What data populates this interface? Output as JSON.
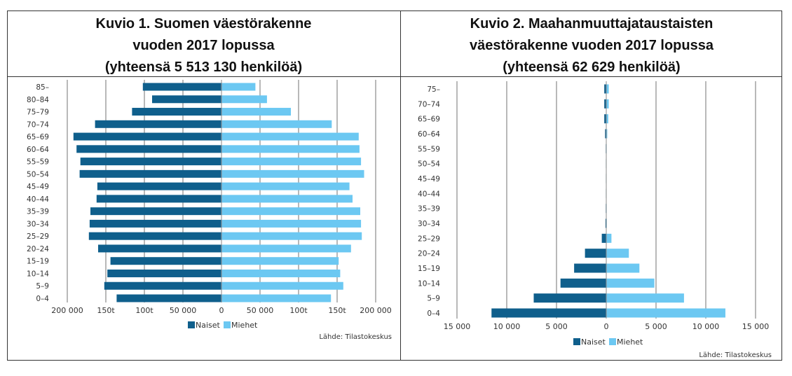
{
  "colors": {
    "naiset": "#0f5f8c",
    "miehet": "#6cc8f2"
  },
  "chart_data": [
    {
      "type": "bar",
      "title_lines": [
        "Kuvio 1. Suomen väestörakenne",
        "vuoden 2017 lopussa",
        "(yhteensä 5 513 130 henkilöä)"
      ],
      "categories": [
        "85–",
        "80–84",
        "75–79",
        "70–74",
        "65–69",
        "60–64",
        "55–59",
        "50–54",
        "45–49",
        "40–44",
        "35–39",
        "30–34",
        "25–29",
        "20–24",
        "15–19",
        "10–14",
        "5–9",
        "0–4"
      ],
      "series": [
        {
          "name": "Naiset",
          "values": [
            102000,
            90000,
            116000,
            164000,
            192000,
            188000,
            183000,
            184000,
            161000,
            162000,
            170000,
            171000,
            172000,
            160000,
            144000,
            148000,
            152000,
            136000
          ]
        },
        {
          "name": "Miehet",
          "values": [
            44000,
            59000,
            90000,
            143000,
            178000,
            179000,
            181000,
            185000,
            166000,
            170000,
            180000,
            181000,
            182000,
            168000,
            152000,
            154000,
            158000,
            142000
          ]
        }
      ],
      "xlim": [
        -200000,
        200000
      ],
      "tick_values": [
        -200000,
        -150000,
        -100000,
        -50000,
        0,
        50000,
        100000,
        150000,
        200000
      ],
      "tick_labels": [
        "200 000",
        "150t",
        "100t",
        "50 000",
        "0",
        "50 000",
        "100t",
        "150t",
        "200 000"
      ],
      "legend": [
        "Naiset",
        "Miehet"
      ],
      "source": "Lähde: Tilastokeskus"
    },
    {
      "type": "bar",
      "title_lines": [
        "Kuvio 2. Maahanmuuttajataustaisten",
        "väestörakenne vuoden 2017 lopussa",
        "(yhteensä 62 629 henkilöä)"
      ],
      "categories": [
        "75–",
        "70–74",
        "65–69",
        "60–64",
        "55–59",
        "50–54",
        "45–49",
        "40–44",
        "35–39",
        "30–34",
        "25–29",
        "20–24",
        "15–19",
        "10–14",
        "5–9",
        "0–4"
      ],
      "series": [
        {
          "name": "Naiset",
          "values": [
            200,
            200,
            200,
            120,
            50,
            40,
            40,
            40,
            50,
            80,
            450,
            2140,
            3230,
            4600,
            7290,
            11530
          ]
        },
        {
          "name": "Miehet",
          "values": [
            250,
            250,
            200,
            100,
            40,
            30,
            30,
            30,
            40,
            50,
            520,
            2270,
            3330,
            4830,
            7810,
            11970
          ]
        }
      ],
      "xlim": [
        -15000,
        15000
      ],
      "tick_values": [
        -15000,
        -10000,
        -5000,
        0,
        5000,
        10000,
        15000
      ],
      "tick_labels": [
        "15 000",
        "10 000",
        "5 000",
        "0",
        "5 000",
        "10 000",
        "15 000"
      ],
      "legend": [
        "Naiset",
        "Miehet"
      ],
      "source": "Lähde: Tilastokeskus"
    }
  ]
}
